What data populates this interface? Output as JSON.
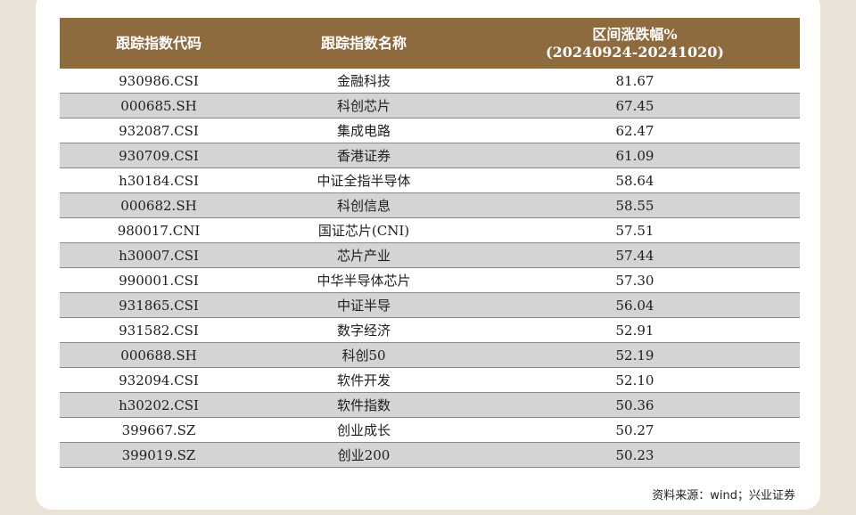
{
  "table": {
    "headers": {
      "code": "跟踪指数代码",
      "name": "跟踪指数名称",
      "change_line1": "区间涨跌幅%",
      "change_line2": "(20240924-20241020)"
    },
    "rows": [
      {
        "code": "930986.CSI",
        "name": "金融科技",
        "change": "81.67"
      },
      {
        "code": "000685.SH",
        "name": "科创芯片",
        "change": "67.45"
      },
      {
        "code": "932087.CSI",
        "name": "集成电路",
        "change": "62.47"
      },
      {
        "code": "930709.CSI",
        "name": "香港证券",
        "change": "61.09"
      },
      {
        "code": "h30184.CSI",
        "name": "中证全指半导体",
        "change": "58.64"
      },
      {
        "code": "000682.SH",
        "name": "科创信息",
        "change": "58.55"
      },
      {
        "code": "980017.CNI",
        "name": "国证芯片(CNI)",
        "change": "57.51"
      },
      {
        "code": "h30007.CSI",
        "name": "芯片产业",
        "change": "57.44"
      },
      {
        "code": "990001.CSI",
        "name": "中华半导体芯片",
        "change": "57.30"
      },
      {
        "code": "931865.CSI",
        "name": "中证半导",
        "change": "56.04"
      },
      {
        "code": "931582.CSI",
        "name": "数字经济",
        "change": "52.91"
      },
      {
        "code": "000688.SH",
        "name": "科创50",
        "change": "52.19"
      },
      {
        "code": "932094.CSI",
        "name": "软件开发",
        "change": "52.10"
      },
      {
        "code": "h30202.CSI",
        "name": "软件指数",
        "change": "50.36"
      },
      {
        "code": "399667.SZ",
        "name": "创业成长",
        "change": "50.27"
      },
      {
        "code": "399019.SZ",
        "name": "创业200",
        "change": "50.23"
      }
    ]
  },
  "source": "资料来源：wind；兴业证券",
  "colors": {
    "header_bg": "#8e6b3f",
    "stripe": "#d4d4d4",
    "page_bg": "#e9e2d6"
  }
}
